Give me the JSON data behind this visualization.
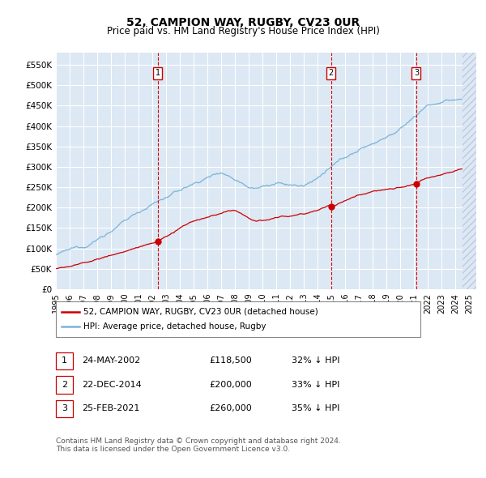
{
  "title": "52, CAMPION WAY, RUGBY, CV23 0UR",
  "subtitle": "Price paid vs. HM Land Registry's House Price Index (HPI)",
  "ylim": [
    0,
    580000
  ],
  "yticks": [
    0,
    50000,
    100000,
    150000,
    200000,
    250000,
    300000,
    350000,
    400000,
    450000,
    500000,
    550000
  ],
  "ytick_labels": [
    "£0",
    "£50K",
    "£100K",
    "£150K",
    "£200K",
    "£250K",
    "£300K",
    "£350K",
    "£400K",
    "£450K",
    "£500K",
    "£550K"
  ],
  "xlim_start": 1995.0,
  "xlim_end": 2025.5,
  "hpi_color": "#7ab4d8",
  "price_color": "#cc0000",
  "vline_color": "#dd0000",
  "bg_color": "#dce8f4",
  "grid_color": "#ffffff",
  "transactions": [
    {
      "label": "1",
      "date": "24-MAY-2002",
      "price": 118500,
      "year_x": 2002.38,
      "pct": "32%",
      "direction": "↓"
    },
    {
      "label": "2",
      "date": "22-DEC-2014",
      "price": 200000,
      "year_x": 2014.97,
      "pct": "33%",
      "direction": "↓"
    },
    {
      "label": "3",
      "date": "25-FEB-2021",
      "price": 260000,
      "year_x": 2021.15,
      "pct": "35%",
      "direction": "↓"
    }
  ],
  "legend_label_price": "52, CAMPION WAY, RUGBY, CV23 0UR (detached house)",
  "legend_label_hpi": "HPI: Average price, detached house, Rugby",
  "footnote": "Contains HM Land Registry data © Crown copyright and database right 2024.\nThis data is licensed under the Open Government Licence v3.0.",
  "xlabel_years": [
    1995,
    1996,
    1997,
    1998,
    1999,
    2000,
    2001,
    2002,
    2003,
    2004,
    2005,
    2006,
    2007,
    2008,
    2009,
    2010,
    2011,
    2012,
    2013,
    2014,
    2015,
    2016,
    2017,
    2018,
    2019,
    2020,
    2021,
    2022,
    2023,
    2024,
    2025
  ]
}
